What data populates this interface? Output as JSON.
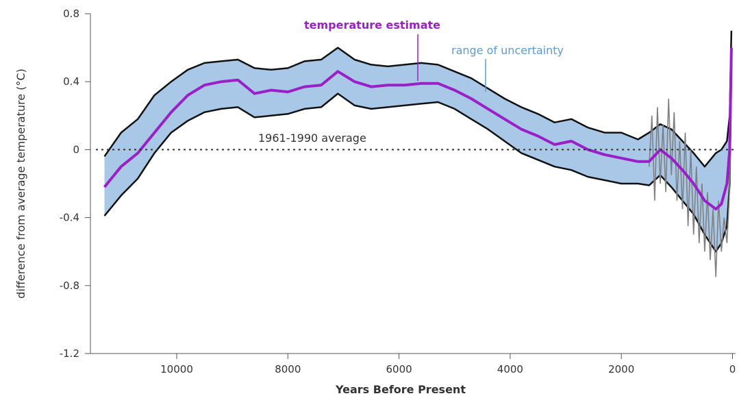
{
  "chart_data": {
    "type": "area",
    "xlabel": "Years Before Present",
    "ylabel": "difference from average temperature (°C)",
    "xlim": [
      11500,
      -50
    ],
    "ylim": [
      -1.2,
      0.8
    ],
    "x_ticks": [
      10000,
      8000,
      6000,
      4000,
      2000,
      0
    ],
    "x_tick_labels": [
      "10000",
      "8000",
      "6000",
      "4000",
      "2000",
      "0"
    ],
    "y_ticks": [
      0.8,
      0.4,
      0,
      -0.4,
      -0.8,
      -1.2
    ],
    "y_tick_labels": [
      "0.8",
      "0.4",
      "0",
      "-0.4",
      "-0.8",
      "-1.2"
    ],
    "reference_line": {
      "label": "1961-1990 average",
      "y": 0
    },
    "annotations": [
      {
        "text": "temperature estimate",
        "color": "#9b1fc9"
      },
      {
        "text": "range of uncertainty",
        "color": "#5b9bd5"
      }
    ],
    "colors": {
      "estimate": "#9b1fc9",
      "band_fill": "#a9c8e8",
      "band_edge": "#111111",
      "recent_series": "#808080",
      "reference": "#333333"
    },
    "x": [
      11300,
      11000,
      10700,
      10400,
      10100,
      9800,
      9500,
      9200,
      8900,
      8600,
      8300,
      8000,
      7700,
      7400,
      7100,
      6800,
      6500,
      6200,
      5900,
      5600,
      5300,
      5000,
      4700,
      4400,
      4100,
      3800,
      3500,
      3200,
      2900,
      2600,
      2300,
      2000,
      1700,
      1500,
      1300,
      1100,
      900,
      700,
      500,
      300,
      200,
      100,
      50,
      20
    ],
    "series": [
      {
        "name": "temperature estimate",
        "values": [
          -0.22,
          -0.1,
          -0.02,
          0.1,
          0.22,
          0.32,
          0.38,
          0.4,
          0.41,
          0.33,
          0.35,
          0.34,
          0.37,
          0.38,
          0.46,
          0.4,
          0.37,
          0.38,
          0.38,
          0.39,
          0.39,
          0.35,
          0.3,
          0.24,
          0.18,
          0.12,
          0.08,
          0.03,
          0.05,
          0.0,
          -0.03,
          -0.05,
          -0.07,
          -0.07,
          0.0,
          -0.05,
          -0.12,
          -0.2,
          -0.3,
          -0.35,
          -0.32,
          -0.2,
          0.0,
          0.6
        ]
      },
      {
        "name": "range of uncertainty upper",
        "values": [
          -0.04,
          0.1,
          0.18,
          0.32,
          0.4,
          0.47,
          0.51,
          0.52,
          0.53,
          0.48,
          0.47,
          0.48,
          0.52,
          0.53,
          0.6,
          0.53,
          0.5,
          0.49,
          0.5,
          0.51,
          0.5,
          0.46,
          0.42,
          0.36,
          0.3,
          0.25,
          0.21,
          0.16,
          0.18,
          0.13,
          0.1,
          0.1,
          0.06,
          0.1,
          0.15,
          0.12,
          0.05,
          -0.02,
          -0.1,
          -0.02,
          0.0,
          0.05,
          0.2,
          0.7
        ]
      },
      {
        "name": "range of uncertainty lower",
        "values": [
          -0.39,
          -0.27,
          -0.17,
          -0.02,
          0.1,
          0.17,
          0.22,
          0.24,
          0.25,
          0.19,
          0.2,
          0.21,
          0.24,
          0.25,
          0.33,
          0.26,
          0.24,
          0.25,
          0.26,
          0.27,
          0.28,
          0.24,
          0.18,
          0.12,
          0.05,
          -0.02,
          -0.06,
          -0.1,
          -0.12,
          -0.16,
          -0.18,
          -0.2,
          -0.2,
          -0.21,
          -0.15,
          -0.22,
          -0.3,
          -0.38,
          -0.5,
          -0.6,
          -0.55,
          -0.45,
          -0.2,
          0.5
        ]
      }
    ],
    "recent_series": {
      "name": "",
      "x": [
        1500,
        1450,
        1400,
        1350,
        1300,
        1250,
        1200,
        1150,
        1100,
        1050,
        1000,
        950,
        900,
        850,
        800,
        750,
        700,
        650,
        600,
        550,
        500,
        450,
        400,
        350,
        300,
        250,
        200,
        150,
        100,
        60,
        30
      ],
      "values": [
        -0.1,
        0.2,
        -0.3,
        0.25,
        -0.2,
        0.15,
        -0.25,
        0.3,
        -0.15,
        0.22,
        -0.3,
        0.05,
        -0.35,
        0.1,
        -0.45,
        0.0,
        -0.5,
        -0.1,
        -0.55,
        -0.2,
        -0.6,
        -0.25,
        -0.65,
        -0.35,
        -0.75,
        -0.3,
        -0.6,
        -0.4,
        -0.55,
        -0.3,
        0.1
      ]
    }
  }
}
